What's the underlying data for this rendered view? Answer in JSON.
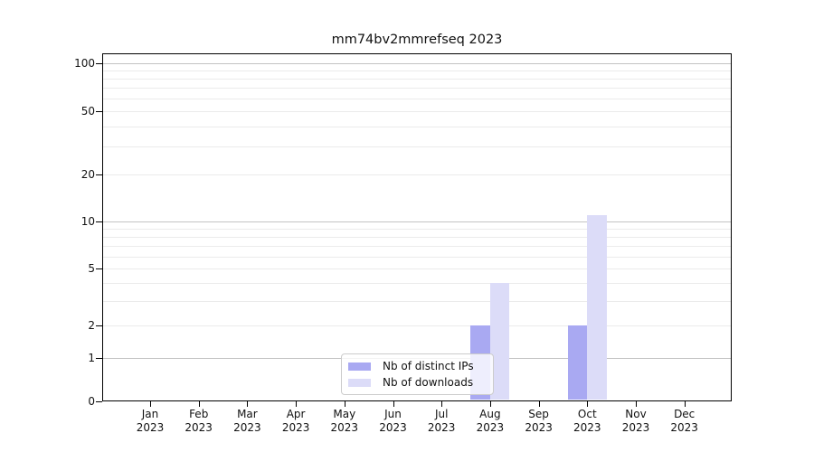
{
  "title": "mm74bv2mmrefseq 2023",
  "chart_data": {
    "type": "bar",
    "title": "mm74bv2mmrefseq 2023",
    "categories": [
      "Jan 2023",
      "Feb 2023",
      "Mar 2023",
      "Apr 2023",
      "May 2023",
      "Jun 2023",
      "Jul 2023",
      "Aug 2023",
      "Sep 2023",
      "Oct 2023",
      "Nov 2023",
      "Dec 2023"
    ],
    "month_labels": [
      "Jan",
      "Feb",
      "Mar",
      "Apr",
      "May",
      "Jun",
      "Jul",
      "Aug",
      "Sep",
      "Oct",
      "Nov",
      "Dec"
    ],
    "year_label": "2023",
    "series": [
      {
        "name": "Nb of distinct IPs",
        "color": "#a9a9f2",
        "values": [
          0,
          0,
          0,
          0,
          0,
          0,
          0,
          2,
          0,
          2,
          0,
          0
        ]
      },
      {
        "name": "Nb of downloads",
        "color": "#dcdcf8",
        "values": [
          0,
          0,
          0,
          0,
          0,
          0,
          0,
          4,
          0,
          11,
          0,
          0
        ]
      }
    ],
    "y_axis": {
      "scale": "asinh",
      "tick_labels": [
        "100",
        "50",
        "20",
        "10",
        "5",
        "2",
        "1",
        "0"
      ],
      "tick_values": [
        100,
        50,
        20,
        10,
        5,
        2,
        1,
        0
      ],
      "major_gridlines": [
        1,
        10,
        100
      ],
      "minor_gridlines": [
        2,
        3,
        4,
        5,
        6,
        7,
        8,
        9,
        20,
        30,
        40,
        50,
        60,
        70,
        80,
        90
      ],
      "range": [
        0,
        110
      ]
    },
    "legend_position": "lower center",
    "colors": {
      "major_grid": "#c3c3c3",
      "minor_grid": "#ebebeb",
      "spine": "#000000",
      "background": "#ffffff"
    }
  }
}
